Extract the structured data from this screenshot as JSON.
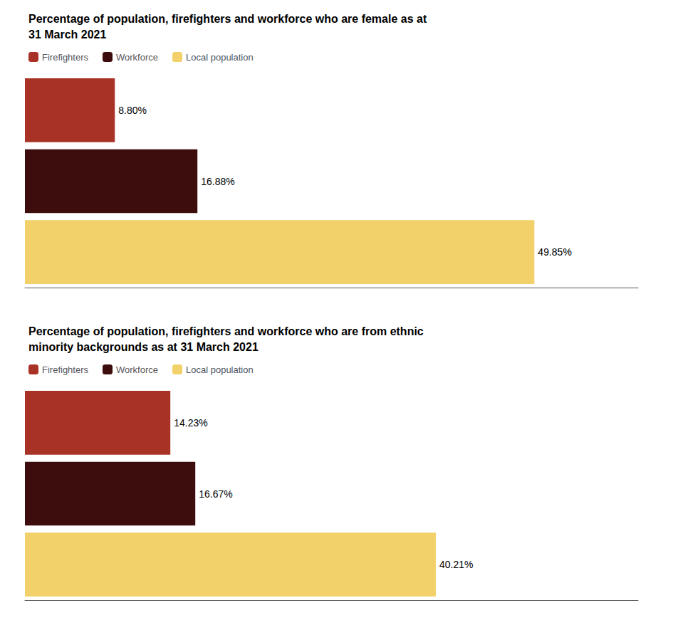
{
  "chart_data": [
    {
      "type": "bar",
      "orientation": "horizontal",
      "title": "Percentage of population, firefighters and workforce who are female as at\n31 March 2021",
      "categories": [
        "Firefighters",
        "Workforce",
        "Local population"
      ],
      "values": [
        8.8,
        16.88,
        49.85
      ],
      "value_labels": [
        "8.80%",
        "16.88%",
        "49.85%"
      ],
      "colors": [
        "#a93226",
        "#3d0c0c",
        "#f2d16b"
      ],
      "xlim": [
        0,
        60
      ],
      "data_labels": true,
      "tick_labels": false,
      "grid": false,
      "legend": "upper left"
    },
    {
      "type": "bar",
      "orientation": "horizontal",
      "title": "Percentage of population, firefighters and workforce who are from ethnic\nminority backgrounds as at 31 March 2021",
      "categories": [
        "Firefighters",
        "Workforce",
        "Local population"
      ],
      "values": [
        14.23,
        16.67,
        40.21
      ],
      "value_labels": [
        "14.23%",
        "16.67%",
        "40.21%"
      ],
      "colors": [
        "#a93226",
        "#3d0c0c",
        "#f2d16b"
      ],
      "xlim": [
        0,
        60
      ],
      "data_labels": true,
      "tick_labels": false,
      "grid": false,
      "legend": "upper left"
    }
  ]
}
